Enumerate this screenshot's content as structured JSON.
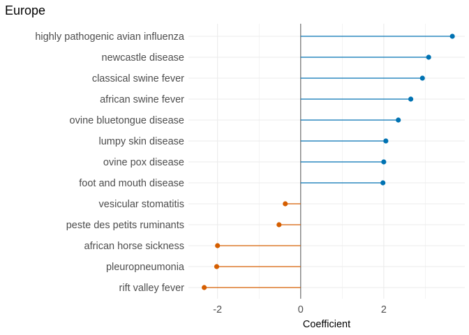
{
  "chart_data": {
    "type": "lollipop",
    "title": "Europe",
    "xlabel": "Coefficient",
    "ylabel": "",
    "xlim": [
      -2.7,
      3.95
    ],
    "x_ticks": [
      -2,
      0,
      2
    ],
    "x_tick_labels": [
      "-2",
      "0",
      "2"
    ],
    "grid": true,
    "categories": [
      "highly pathogenic avian influenza",
      "newcastle disease",
      "classical swine fever",
      "african swine fever",
      "ovine bluetongue disease",
      "lumpy skin disease",
      "ovine pox disease",
      "foot and mouth disease",
      "vesicular stomatitis",
      "peste des petits ruminants",
      "african horse sickness",
      "pleuropneumonia",
      "rift valley fever"
    ],
    "values": [
      3.65,
      3.08,
      2.93,
      2.65,
      2.35,
      2.05,
      2.0,
      1.98,
      -0.37,
      -0.52,
      -2.0,
      -2.02,
      -2.32
    ],
    "colors": {
      "positive": "#0072B2",
      "negative": "#D55E00",
      "zero_line": "#808080",
      "grid": "#ebebeb"
    }
  }
}
